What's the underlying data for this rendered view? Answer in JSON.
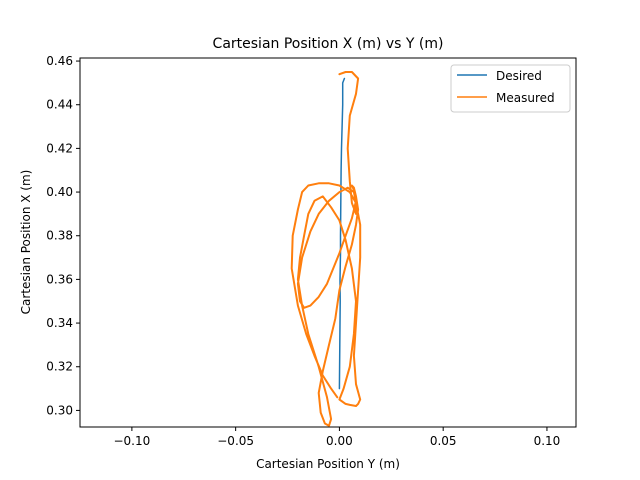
{
  "chart_data": {
    "type": "line",
    "title": "Cartesian Position X (m) vs Y (m)",
    "xlabel": "Cartesian Position Y (m)",
    "ylabel": "Cartesian Position X (m)",
    "xlim": [
      -0.125,
      0.114
    ],
    "ylim": [
      0.4614,
      0.2924
    ],
    "y_inverted": true,
    "xticks": [
      -0.1,
      -0.05,
      0.0,
      0.05,
      0.1
    ],
    "xtick_labels": [
      "−0.10",
      "−0.05",
      "0.00",
      "0.05",
      "0.10"
    ],
    "yticks": [
      0.3,
      0.32,
      0.34,
      0.36,
      0.38,
      0.4,
      0.42,
      0.44,
      0.46
    ],
    "ytick_labels": [
      "0.30",
      "0.32",
      "0.34",
      "0.36",
      "0.38",
      "0.40",
      "0.42",
      "0.44",
      "0.46"
    ],
    "grid": false,
    "legend_position": "top-right",
    "series": [
      {
        "name": "Desired",
        "color": "#1f77b4",
        "x": [
          0.0,
          0.0002,
          0.0004,
          0.0003,
          0.0005,
          0.0005,
          0.0006,
          0.0007,
          0.0008,
          0.001,
          0.0016,
          0.0016,
          0.0024
        ],
        "y": [
          0.31,
          0.33,
          0.35,
          0.36,
          0.372,
          0.38,
          0.39,
          0.4,
          0.41,
          0.42,
          0.44,
          0.45,
          0.452
        ]
      },
      {
        "name": "Measured",
        "color": "#ff7f0e",
        "x": [
          -0.001,
          -0.004,
          -0.008,
          -0.012,
          -0.016,
          -0.02,
          -0.023,
          -0.0225,
          -0.02,
          -0.018,
          -0.015,
          -0.01,
          -0.005,
          0.0,
          0.005,
          0.008,
          0.01,
          0.01,
          0.009,
          0.008,
          0.007,
          0.008,
          0.01,
          0.009,
          0.008,
          0.005,
          0.003,
          0.0,
          0.002,
          0.005,
          0.007,
          0.008,
          0.006,
          0.003,
          0.0,
          -0.004,
          -0.008,
          -0.012,
          -0.015,
          -0.017,
          -0.019,
          -0.02,
          -0.018,
          -0.015,
          -0.01,
          -0.006,
          -0.004,
          -0.005,
          -0.007,
          -0.009,
          -0.01,
          -0.008,
          -0.005,
          -0.002,
          0.0,
          0.003,
          0.006,
          0.008,
          0.009,
          0.008,
          0.007,
          0.006,
          0.007,
          0.008,
          0.006,
          0.003,
          0.0,
          -0.003,
          -0.006,
          -0.01,
          -0.014,
          -0.017,
          -0.019,
          -0.02,
          -0.018,
          -0.014,
          -0.01,
          -0.005,
          0.0,
          0.004,
          0.007,
          0.008,
          0.008,
          0.006,
          0.005,
          0.004,
          0.005,
          0.008,
          0.009,
          0.006,
          0.003,
          0.0
        ],
        "y": [
          0.306,
          0.31,
          0.316,
          0.325,
          0.335,
          0.348,
          0.365,
          0.38,
          0.392,
          0.4,
          0.403,
          0.404,
          0.404,
          0.403,
          0.4,
          0.395,
          0.385,
          0.37,
          0.355,
          0.34,
          0.325,
          0.312,
          0.305,
          0.303,
          0.302,
          0.3025,
          0.303,
          0.305,
          0.31,
          0.32,
          0.335,
          0.35,
          0.365,
          0.378,
          0.387,
          0.393,
          0.398,
          0.396,
          0.39,
          0.38,
          0.37,
          0.36,
          0.348,
          0.335,
          0.32,
          0.306,
          0.296,
          0.293,
          0.294,
          0.299,
          0.308,
          0.318,
          0.33,
          0.342,
          0.355,
          0.366,
          0.376,
          0.385,
          0.392,
          0.398,
          0.402,
          0.403,
          0.401,
          0.396,
          0.388,
          0.38,
          0.372,
          0.365,
          0.358,
          0.352,
          0.348,
          0.347,
          0.35,
          0.358,
          0.37,
          0.382,
          0.39,
          0.396,
          0.4,
          0.402,
          0.4,
          0.395,
          0.39,
          0.395,
          0.405,
          0.42,
          0.435,
          0.445,
          0.452,
          0.455,
          0.455,
          0.454
        ]
      }
    ]
  }
}
